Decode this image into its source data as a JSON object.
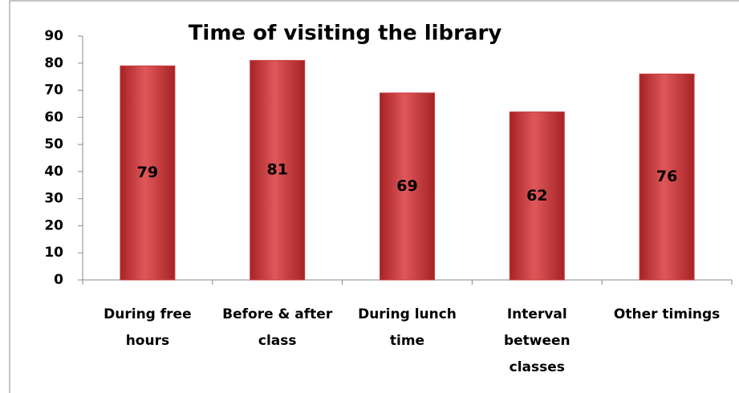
{
  "chart_data": {
    "type": "bar",
    "title": "Time of visiting the library",
    "categories": [
      "During free hours",
      "Before & after class",
      "During lunch time",
      "Interval between classes",
      "Other timings"
    ],
    "values": [
      79,
      81,
      69,
      62,
      76
    ],
    "color": "#c8383a",
    "ylim": [
      0,
      90
    ],
    "yticks": [
      0,
      10,
      20,
      30,
      40,
      50,
      60,
      70,
      80,
      90
    ],
    "grid": false
  }
}
